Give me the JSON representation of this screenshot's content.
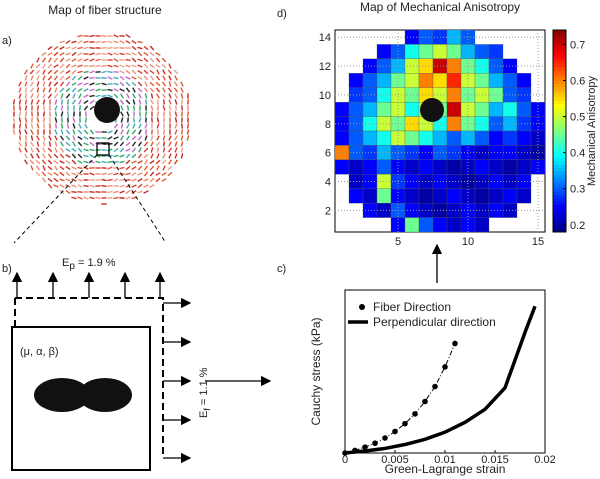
{
  "panel_a": {
    "label": "a)",
    "title": "Map of fiber structure"
  },
  "panel_b": {
    "label": "b)",
    "load_top": {
      "symbol": "E",
      "subscript": "p",
      "text": " = 1.9 %"
    },
    "parameters": "(μ, α, β)",
    "load_right": {
      "symbol": "E",
      "subscript": "f",
      "text": " = 1.1 %"
    }
  },
  "chart_data": [
    {
      "type": "heatmap",
      "label": "d)",
      "title": "Map of Mechanical Anisotropy",
      "colorbar_label": "Mechanical Anisotropy",
      "x": [
        1,
        2,
        3,
        4,
        5,
        6,
        7,
        8,
        9,
        10,
        11,
        12,
        13,
        14,
        15
      ],
      "y": [
        14,
        13,
        12,
        11,
        10,
        9,
        8,
        7,
        6,
        5,
        4,
        3,
        2,
        1
      ],
      "z": [
        [
          null,
          null,
          null,
          null,
          null,
          0.25,
          0.3,
          0.28,
          0.35,
          0.3,
          null,
          null,
          null,
          null,
          null
        ],
        [
          null,
          null,
          null,
          0.25,
          0.3,
          0.4,
          0.45,
          0.5,
          0.45,
          0.35,
          0.3,
          0.28,
          null,
          null,
          null
        ],
        [
          null,
          null,
          0.25,
          0.3,
          0.35,
          0.5,
          0.55,
          0.7,
          0.6,
          0.45,
          0.4,
          0.3,
          0.25,
          null,
          null
        ],
        [
          null,
          0.25,
          0.3,
          0.35,
          0.45,
          0.5,
          0.6,
          0.55,
          0.65,
          0.5,
          0.45,
          0.35,
          0.3,
          0.25,
          null
        ],
        [
          null,
          0.28,
          0.3,
          0.4,
          0.5,
          0.45,
          0.55,
          0.5,
          0.6,
          0.45,
          0.5,
          0.45,
          0.3,
          0.28,
          null
        ],
        [
          0.25,
          0.3,
          0.35,
          0.45,
          0.5,
          0.4,
          0.5,
          0.45,
          0.7,
          0.5,
          0.45,
          0.35,
          0.4,
          0.3,
          0.25
        ],
        [
          0.25,
          0.3,
          0.4,
          0.5,
          0.45,
          0.55,
          0.5,
          0.4,
          0.6,
          0.45,
          0.4,
          0.3,
          0.35,
          0.28,
          0.25
        ],
        [
          0.25,
          0.3,
          0.35,
          0.4,
          0.5,
          0.45,
          0.4,
          0.35,
          0.3,
          0.35,
          0.3,
          0.25,
          0.28,
          0.25,
          0.22
        ],
        [
          0.6,
          0.3,
          0.28,
          0.35,
          0.3,
          0.28,
          0.25,
          0.3,
          0.28,
          0.25,
          0.22,
          0.25,
          0.25,
          0.22,
          0.2
        ],
        [
          0.25,
          0.22,
          0.25,
          0.3,
          0.25,
          0.22,
          0.25,
          0.22,
          0.2,
          0.22,
          0.25,
          0.22,
          0.2,
          0.22,
          0.25
        ],
        [
          null,
          0.22,
          0.25,
          0.5,
          0.28,
          0.25,
          0.22,
          0.25,
          0.22,
          0.2,
          0.22,
          0.25,
          0.22,
          0.25,
          null
        ],
        [
          null,
          0.25,
          0.22,
          0.45,
          0.25,
          0.22,
          0.2,
          0.22,
          0.25,
          0.22,
          0.2,
          0.22,
          0.25,
          0.22,
          null
        ],
        [
          null,
          null,
          0.25,
          0.22,
          0.3,
          0.25,
          0.22,
          0.2,
          0.22,
          0.25,
          0.22,
          0.25,
          0.22,
          null,
          null
        ],
        [
          null,
          null,
          null,
          null,
          0.25,
          0.45,
          0.3,
          0.25,
          0.22,
          0.25,
          0.22,
          null,
          null,
          null,
          null
        ]
      ],
      "xlim": [
        0.5,
        15.5
      ],
      "ylim": [
        0.5,
        14.5
      ],
      "xticks": [
        5,
        10,
        15
      ],
      "yticks": [
        2,
        4,
        6,
        8,
        10,
        12,
        14
      ],
      "clim": [
        0.18,
        0.74
      ],
      "cticks": [
        0.2,
        0.3,
        0.4,
        0.5,
        0.6,
        0.7
      ],
      "colormap": "jet",
      "grid": true
    },
    {
      "type": "line",
      "label": "c)",
      "xlabel": "Green-Lagrange strain",
      "ylabel": "Cauchy stress (kPa)",
      "xlim": [
        0,
        0.02
      ],
      "ylim": [
        0,
        250
      ],
      "xticks": [
        0,
        0.005,
        0.01,
        0.015,
        0.02
      ],
      "legend": "upper-left",
      "series": [
        {
          "name": "Fiber Direction",
          "color": "#000000",
          "line_style": "dashdot",
          "marker": true,
          "x": [
            0,
            0.001,
            0.002,
            0.003,
            0.004,
            0.005,
            0.006,
            0.007,
            0.008,
            0.009,
            0.01,
            0.011
          ],
          "values": [
            0,
            4,
            9,
            15,
            23,
            33,
            45,
            60,
            79,
            102,
            132,
            168
          ]
        },
        {
          "name": "Perpendicular direction",
          "color": "#000000",
          "line_style": "solid",
          "marker": false,
          "x": [
            0,
            0.002,
            0.004,
            0.006,
            0.008,
            0.01,
            0.012,
            0.014,
            0.016,
            0.018,
            0.019
          ],
          "values": [
            0,
            3,
            7,
            13,
            21,
            32,
            47,
            67,
            100,
            185,
            225
          ]
        }
      ]
    }
  ]
}
